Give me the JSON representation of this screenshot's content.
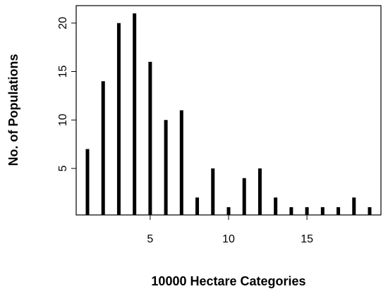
{
  "chart_data": {
    "type": "needle",
    "x_label": "10000 Hectare Categories",
    "y_label": "No. of Populations",
    "x": [
      1,
      2,
      3,
      4,
      5,
      6,
      7,
      8,
      9,
      10,
      11,
      12,
      13,
      14,
      15,
      16,
      17,
      18,
      19
    ],
    "values": [
      7,
      14,
      20,
      21,
      16,
      10,
      11,
      2,
      5,
      1,
      4,
      5,
      2,
      1,
      1,
      1,
      1,
      2,
      1
    ],
    "color": "#000000",
    "xlim": [
      0.28,
      19.72
    ],
    "xticks": [
      5,
      10,
      15
    ],
    "ylim": [
      0.2,
      21.8
    ],
    "yticks": [
      5,
      10,
      15,
      20
    ]
  }
}
